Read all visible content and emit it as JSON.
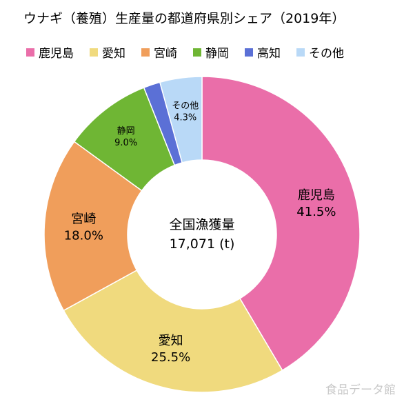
{
  "chart_data": {
    "type": "pie",
    "style": "donut",
    "title": "ウナギ（養殖）生産量の都道府県別シェア（2019年）",
    "legend_position": "top",
    "center_label": "全国漁獲量",
    "center_value": "17,071 (t)",
    "categories": [
      "鹿児島",
      "愛知",
      "宮崎",
      "静岡",
      "高知",
      "その他"
    ],
    "values": [
      41.5,
      25.5,
      18.0,
      9.0,
      1.7,
      4.3
    ],
    "value_labels": [
      "41.5%",
      "25.5%",
      "18.0%",
      "9.0%",
      "",
      "4.3%"
    ],
    "colors": [
      "#ea6ea9",
      "#f0da7e",
      "#f09e5b",
      "#6fb634",
      "#5b70d6",
      "#b9d9f7"
    ]
  },
  "watermark": "食品データ館"
}
